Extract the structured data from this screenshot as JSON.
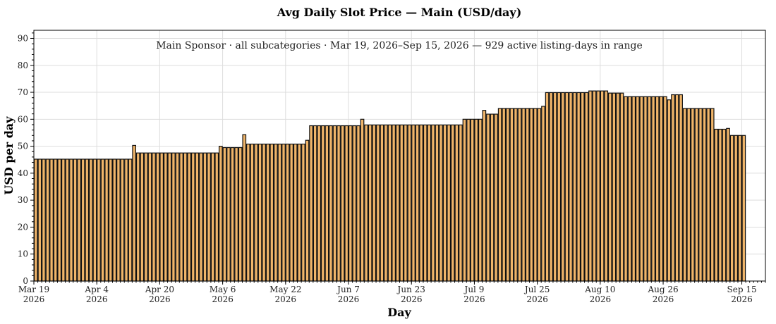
{
  "chart_data": {
    "type": "bar",
    "title": "Avg Daily Slot Price — Main (USD/day)",
    "annotation": "Main Sponsor · all subcategories · Mar 19, 2026–Sep 15, 2026 — 929 active listing-days in range",
    "xlabel": "Day",
    "ylabel": "USD per day",
    "ylim": [
      0,
      93
    ],
    "yticks": [
      0,
      10,
      20,
      30,
      40,
      50,
      60,
      70,
      80,
      90
    ],
    "xlim": [
      "2026-03-19",
      "2026-09-21"
    ],
    "xticks": [
      {
        "date": "2026-03-19",
        "line1": "Mar 19",
        "line2": "2026"
      },
      {
        "date": "2026-04-04",
        "line1": "Apr 4",
        "line2": "2026"
      },
      {
        "date": "2026-04-20",
        "line1": "Apr 20",
        "line2": "2026"
      },
      {
        "date": "2026-05-06",
        "line1": "May 6",
        "line2": "2026"
      },
      {
        "date": "2026-05-22",
        "line1": "May 22",
        "line2": "2026"
      },
      {
        "date": "2026-06-07",
        "line1": "Jun 7",
        "line2": "2026"
      },
      {
        "date": "2026-06-23",
        "line1": "Jun 23",
        "line2": "2026"
      },
      {
        "date": "2026-07-09",
        "line1": "Jul 9",
        "line2": "2026"
      },
      {
        "date": "2026-07-25",
        "line1": "Jul 25",
        "line2": "2026"
      },
      {
        "date": "2026-08-10",
        "line1": "Aug 10",
        "line2": "2026"
      },
      {
        "date": "2026-08-26",
        "line1": "Aug 26",
        "line2": "2026"
      },
      {
        "date": "2026-09-15",
        "line1": "Sep 15",
        "line2": "2026"
      }
    ],
    "grid": true,
    "bar_color": "#f0b56a",
    "edge_color": "#111111",
    "segments": [
      {
        "from": "2026-03-19",
        "to": "2026-04-12",
        "value": 45.2
      },
      {
        "from": "2026-04-13",
        "to": "2026-04-13",
        "value": 50.3
      },
      {
        "from": "2026-04-14",
        "to": "2026-05-04",
        "value": 47.5
      },
      {
        "from": "2026-05-05",
        "to": "2026-05-05",
        "value": 50.0
      },
      {
        "from": "2026-05-06",
        "to": "2026-05-10",
        "value": 49.5
      },
      {
        "from": "2026-05-11",
        "to": "2026-05-11",
        "value": 54.3
      },
      {
        "from": "2026-05-12",
        "to": "2026-05-26",
        "value": 50.8
      },
      {
        "from": "2026-05-27",
        "to": "2026-05-27",
        "value": 52.2
      },
      {
        "from": "2026-05-28",
        "to": "2026-06-09",
        "value": 57.6
      },
      {
        "from": "2026-06-10",
        "to": "2026-06-10",
        "value": 60.0
      },
      {
        "from": "2026-06-11",
        "to": "2026-07-05",
        "value": 57.9
      },
      {
        "from": "2026-07-06",
        "to": "2026-07-10",
        "value": 60.0
      },
      {
        "from": "2026-07-11",
        "to": "2026-07-11",
        "value": 63.3
      },
      {
        "from": "2026-07-12",
        "to": "2026-07-14",
        "value": 61.9
      },
      {
        "from": "2026-07-15",
        "to": "2026-07-25",
        "value": 64.0
      },
      {
        "from": "2026-07-26",
        "to": "2026-07-26",
        "value": 64.8
      },
      {
        "from": "2026-07-27",
        "to": "2026-08-06",
        "value": 69.9
      },
      {
        "from": "2026-08-07",
        "to": "2026-08-11",
        "value": 70.5
      },
      {
        "from": "2026-08-12",
        "to": "2026-08-15",
        "value": 69.7
      },
      {
        "from": "2026-08-16",
        "to": "2026-08-26",
        "value": 68.4
      },
      {
        "from": "2026-08-27",
        "to": "2026-08-27",
        "value": 67.2
      },
      {
        "from": "2026-08-28",
        "to": "2026-08-30",
        "value": 69.1
      },
      {
        "from": "2026-08-31",
        "to": "2026-09-07",
        "value": 64.0
      },
      {
        "from": "2026-09-08",
        "to": "2026-09-10",
        "value": 56.3
      },
      {
        "from": "2026-09-11",
        "to": "2026-09-11",
        "value": 56.6
      },
      {
        "from": "2026-09-12",
        "to": "2026-09-15",
        "value": 54.0
      }
    ]
  }
}
